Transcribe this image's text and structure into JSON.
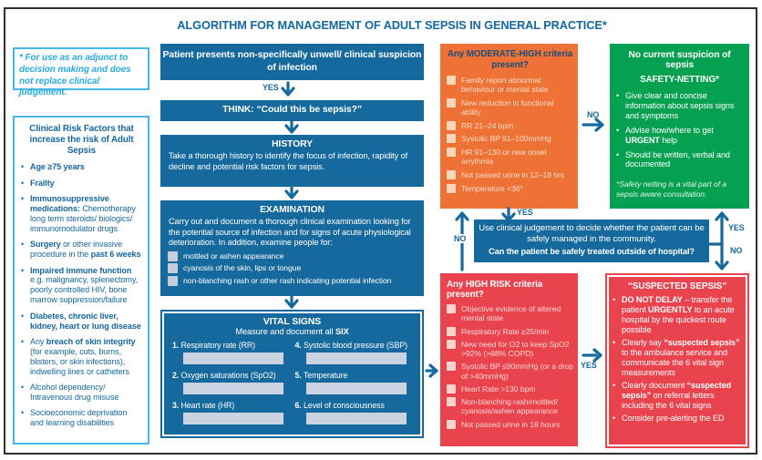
{
  "title": "ALGORITHM FOR MANAGEMENT OF ADULT SEPSIS IN GENERAL PRACTICE*",
  "labels": {
    "yes": "YES",
    "no": "NO"
  },
  "adjunct_note": "* For use as an adjunct to decision making and does not replace clinical judgement.",
  "risk_factors": {
    "title": "Clinical Risk Factors that increase the risk of Adult Sepsis",
    "items": [
      "**Age ≥75 years**",
      "**Frailty**",
      "**Immunosuppressive medications:** Chemotherapy long term steroids/ biologics/ immunomodulator drugs",
      "**Surgery** or other invasive procedure in the **past 6 weeks**",
      "**Impaired immune function** e.g. malignancy, splenectomy, poorly controlled HIV, bone marrow suppression/failure",
      "**Diabetes, chronic liver, kidney, heart or lung disease**",
      "Any **breach of skin integrity** (for example, cuts, burns, blisters, or skin infections), indwelling lines or catheters",
      "Alcohol dependency/ Intravenous drug misuse",
      "Socioeconomic deprivation and learning disabilities"
    ]
  },
  "flow": {
    "patient_presents": "Patient presents non-specifically unwell/ clinical suspicion of infection",
    "think": "THINK: “Could this be sepsis?”",
    "history": {
      "title": "HISTORY",
      "body": "Take a thorough history to identify the focus of infection, rapidity of decline and potential risk factors for sepsis."
    },
    "examination": {
      "title": "EXAMINATION",
      "body": "Carry out and document a thorough clinical examination looking for the potential source of infection and for signs of acute physiological deterioration. In addition, examine people for:",
      "checks": [
        "mottled or ashen appearance",
        "cyanosis of the skin, lips or tongue",
        "non-blanching rash or other rash indicating potential infection"
      ]
    },
    "vital_signs": {
      "title": "VITAL SIGNS",
      "subtitle": "Measure and document all **SIX**",
      "fields": [
        {
          "num": "1.",
          "label": "Respiratory rate (RR)"
        },
        {
          "num": "4.",
          "label": "Systolic blood pressure (SBP)"
        },
        {
          "num": "2.",
          "label": "Oxygen saturations (SpO2)"
        },
        {
          "num": "5.",
          "label": "Temperature"
        },
        {
          "num": "3.",
          "label": "Heart rate (HR)"
        },
        {
          "num": "6.",
          "label": "Level of consciousness"
        }
      ]
    }
  },
  "moderate_high": {
    "title": "Any MODERATE-HIGH criteria present?",
    "items": [
      "Family report abnormal behaviour or mental state",
      "New reduction in functional ability",
      "RR 21–24 bpm",
      "Systolic BP 91–100mmHg",
      "HR 91–130 or new onset arrythmia",
      "Not passed urine in 12–18 hrs",
      "Temperature <36°"
    ]
  },
  "safety_netting": {
    "title": "No current suspicion of sepsis",
    "subtitle": "SAFETY-NETTING*",
    "items": [
      "Give clear and concise information about sepsis signs and symptoms",
      "Advise how/where to get **URGENT** help",
      "Should be written, verbal and documented"
    ],
    "footnote": "*Safety netting is a vital part of a sepsis aware consultation."
  },
  "judgement": {
    "line1": "Use clinical judgement to decide whether the patient can be safely managed in the community.",
    "line2": "Can the patient be safely treated outside of hospital?"
  },
  "high_risk": {
    "title": "Any HIGH RISK criteria present?",
    "items": [
      "Objective evidence of altered mental state",
      "Respiratory Rate ≥25/min",
      "New need for O2 to keep SpO2 >92% (>88% COPD)",
      "Systolic BP ≤90mmHg (or a drop of >40mmHg)",
      "Heart Rate >130 bpm",
      "Non-blanching rash/mottled/ cyanosis/ashen appearance",
      "Not passed urine in 18 hours"
    ]
  },
  "suspected_sepsis": {
    "title": "“SUSPECTED SEPSIS”",
    "items": [
      "**DO NOT DELAY** – transfer the patient **URGENTLY** to an acute hospital by the quickest route possible",
      "Clearly say **“suspected sepsis”** to the ambulance service and communicate the 6 vital sign measurements",
      "Clearly document **“suspected sepsis”** on referral letters including the 6 vital signs",
      "Consider pre-alerting the ED"
    ]
  }
}
